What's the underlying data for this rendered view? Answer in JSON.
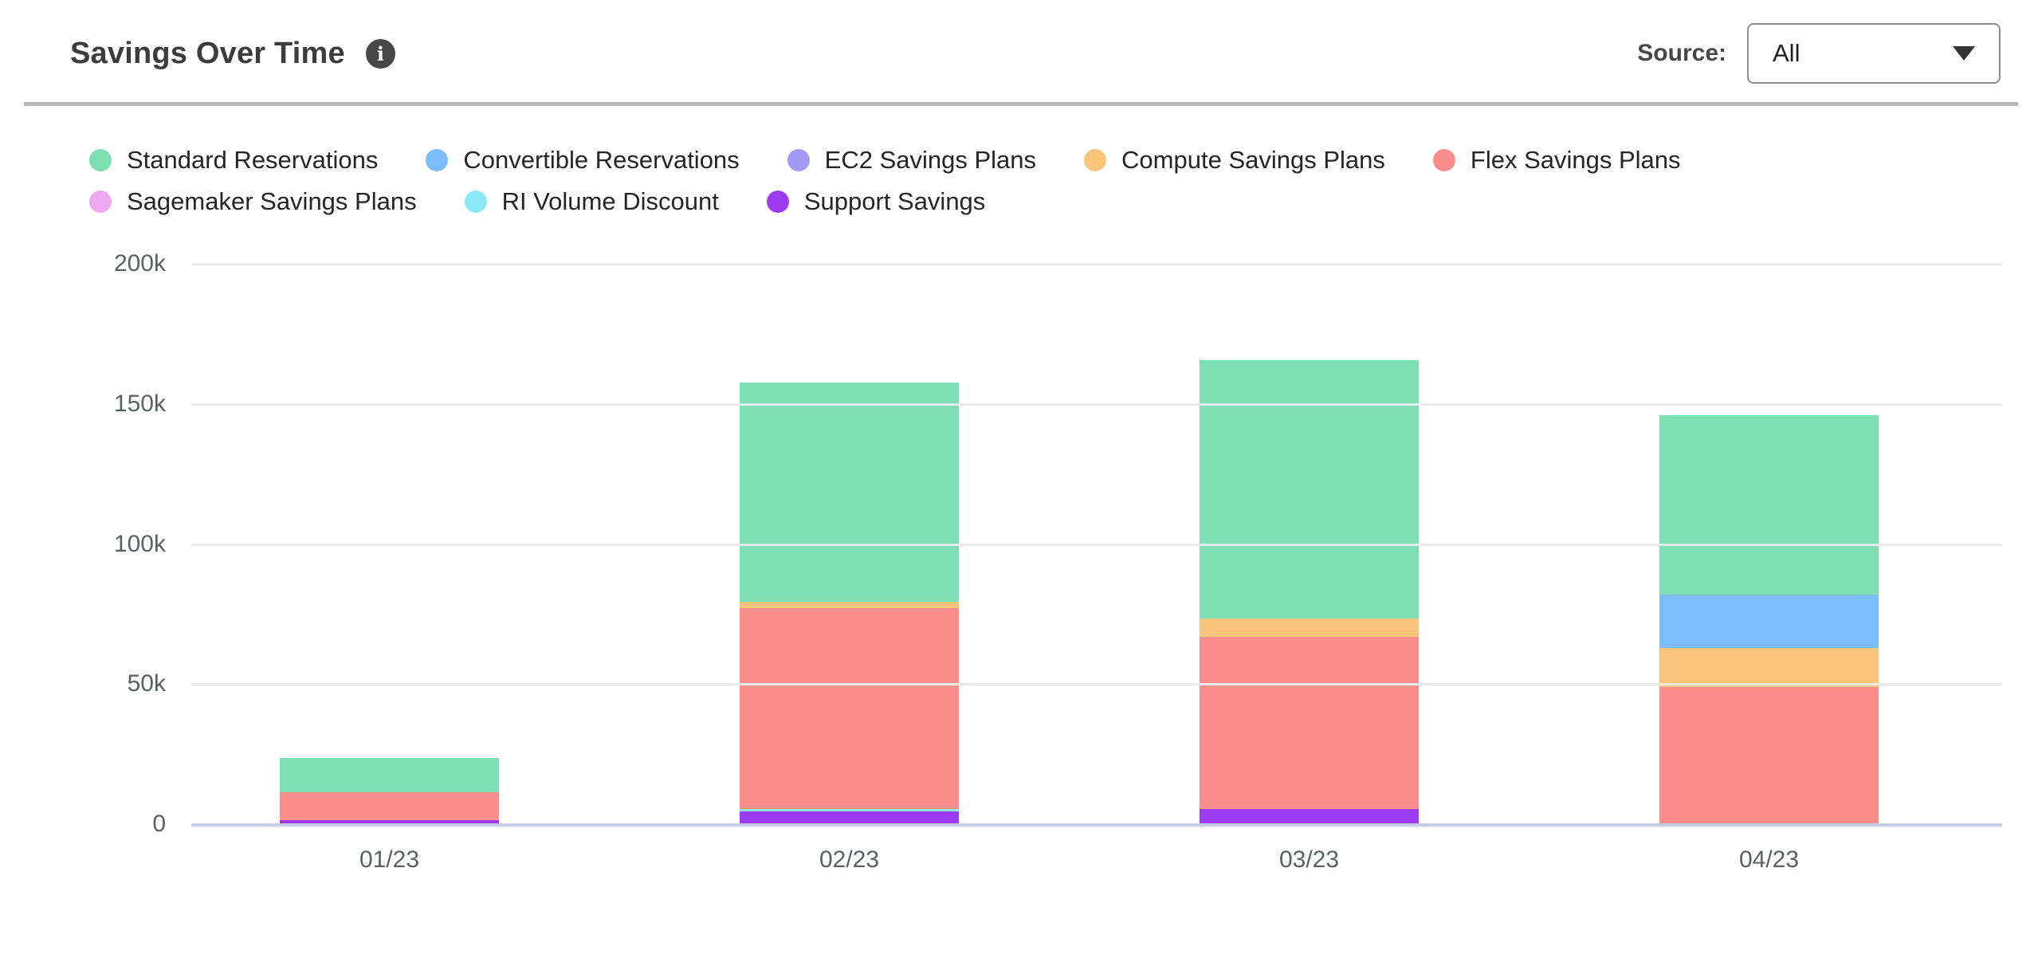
{
  "header": {
    "title": "Savings Over Time",
    "info_glyph": "i",
    "source_label": "Source:",
    "source_value": "All"
  },
  "legend": {
    "items": [
      {
        "label": "Standard Reservations",
        "color": "#7EDFB2"
      },
      {
        "label": "Convertible Reservations",
        "color": "#7BBCFA"
      },
      {
        "label": "EC2 Savings Plans",
        "color": "#A29AF4"
      },
      {
        "label": "Compute Savings Plans",
        "color": "#F9C57D"
      },
      {
        "label": "Flex Savings Plans",
        "color": "#FC8D8D"
      },
      {
        "label": "Sagemaker Savings Plans",
        "color": "#EEA9F1"
      },
      {
        "label": "RI Volume Discount",
        "color": "#8BE8F6"
      },
      {
        "label": "Support Savings",
        "color": "#9D3BF0"
      }
    ],
    "row_split": 5
  },
  "chart_data": {
    "type": "bar",
    "stacked": true,
    "title": "Savings Over Time",
    "categories": [
      "01/23",
      "02/23",
      "03/23",
      "04/23"
    ],
    "series": [
      {
        "name": "Support Savings",
        "color": "#9D3BF0",
        "values": [
          1.5,
          4.5,
          5.5,
          0
        ]
      },
      {
        "name": "RI Volume Discount",
        "color": "#8BE8F6",
        "values": [
          0,
          1,
          0,
          0
        ]
      },
      {
        "name": "Flex Savings Plans",
        "color": "#FC8D8D",
        "values": [
          10,
          71.5,
          61.5,
          49
        ]
      },
      {
        "name": "Compute Savings Plans",
        "color": "#F9C57D",
        "values": [
          0,
          2.5,
          6.5,
          14
        ]
      },
      {
        "name": "Convertible Reservations",
        "color": "#7BBCFA",
        "values": [
          0,
          0,
          0,
          19
        ]
      },
      {
        "name": "Sagemaker Savings Plans",
        "color": "#EEA9F1",
        "values": [
          0,
          0,
          0,
          0
        ]
      },
      {
        "name": "EC2 Savings Plans",
        "color": "#A29AF4",
        "values": [
          0,
          0,
          0,
          0
        ]
      },
      {
        "name": "Standard Reservations",
        "color": "#7EDFB2",
        "values": [
          12,
          78,
          92,
          64
        ]
      }
    ],
    "stack_order": "bottom-to-top",
    "totals": [
      23.5,
      157.5,
      165.5,
      146
    ],
    "unit": "k",
    "xlabel": "",
    "ylabel": "",
    "ylim": [
      0,
      200
    ],
    "y_ticks": [
      "200k",
      "150k",
      "100k",
      "50k",
      "0"
    ],
    "grid": true,
    "legend_position": "top"
  }
}
